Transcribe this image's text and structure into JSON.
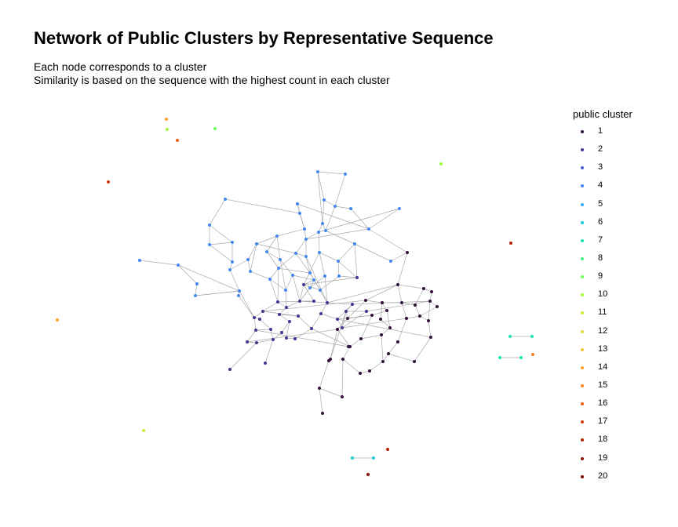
{
  "title": "Network of Public Clusters by Representative Sequence",
  "subtitle_lines": [
    "Each node corresponds to a cluster",
    "Similarity is based on the sequence with the highest count in each cluster"
  ],
  "legend_title": "public cluster",
  "chart_data": {
    "type": "network",
    "title": "Network of Public Clusters by Representative Sequence",
    "legend": {
      "title": "public cluster",
      "placement": "right",
      "items": [
        {
          "label": "1",
          "color": "#30123b"
        },
        {
          "label": "2",
          "color": "#3e3891"
        },
        {
          "label": "3",
          "color": "#4660d1"
        },
        {
          "label": "4",
          "color": "#4686f3"
        },
        {
          "label": "5",
          "color": "#32abf5"
        },
        {
          "label": "6",
          "color": "#1ccbd9"
        },
        {
          "label": "7",
          "color": "#1ae4b5"
        },
        {
          "label": "8",
          "color": "#3ef388"
        },
        {
          "label": "9",
          "color": "#70fe5d"
        },
        {
          "label": "10",
          "color": "#9dfc3a"
        },
        {
          "label": "11",
          "color": "#c2ef34"
        },
        {
          "label": "12",
          "color": "#e1dc37"
        },
        {
          "label": "13",
          "color": "#f8c23a"
        },
        {
          "label": "14",
          "color": "#fea32f"
        },
        {
          "label": "15",
          "color": "#f8801f"
        },
        {
          "label": "16",
          "color": "#e75d12"
        },
        {
          "label": "17",
          "color": "#cf3d07"
        },
        {
          "label": "18",
          "color": "#b02404"
        },
        {
          "label": "19",
          "color": "#8b1002"
        },
        {
          "label": "20",
          "color": "#7a0403"
        }
      ]
    },
    "axes_visible": false,
    "grid": false,
    "edge_color": "#aaaaaa"
  }
}
